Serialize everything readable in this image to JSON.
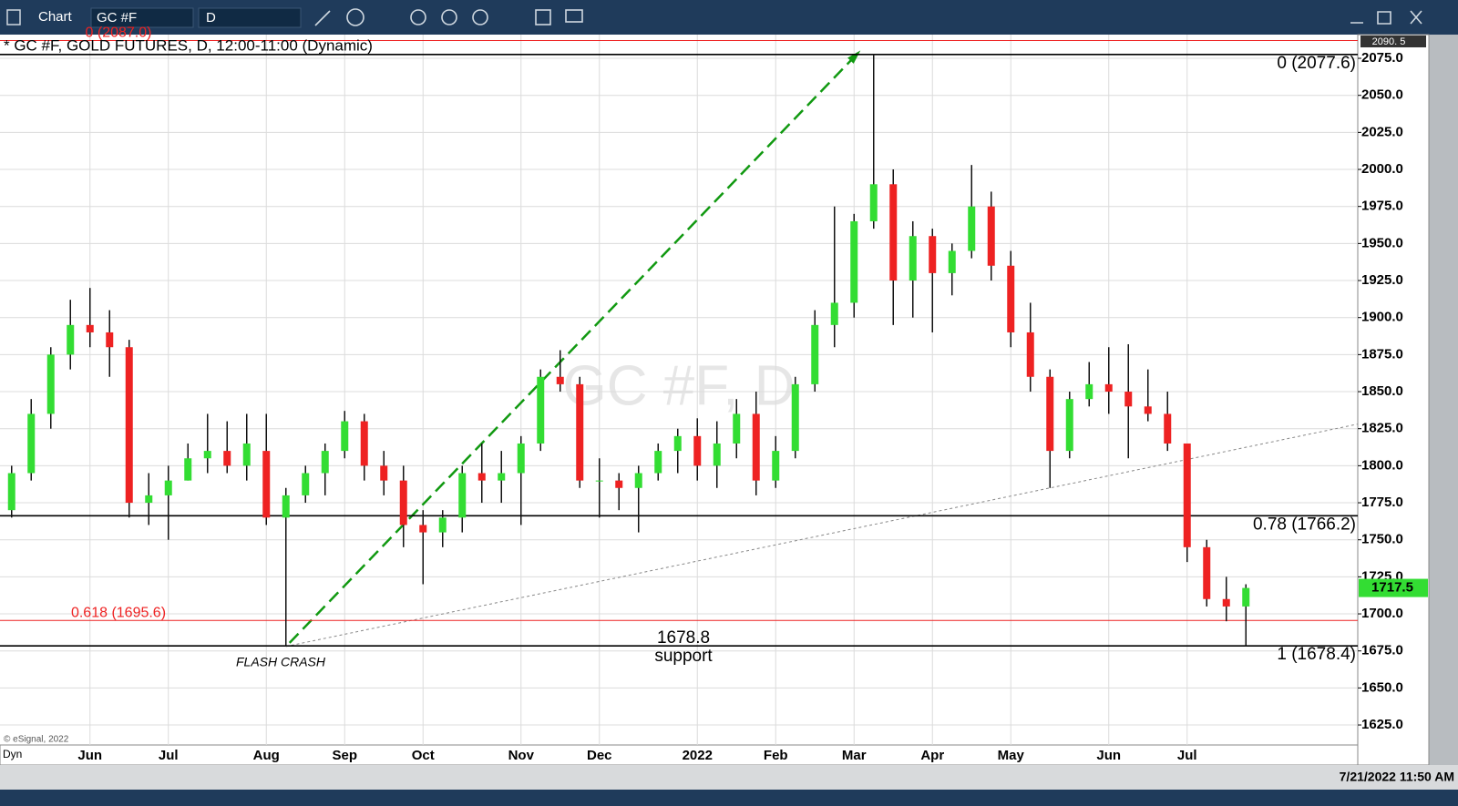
{
  "ui": {
    "toolbar": {
      "title": "Chart",
      "symbol": "GC #F",
      "interval": "D"
    },
    "status": {
      "mode": "Dyn",
      "datetime": "7/21/2022 11:50 AM"
    },
    "copyright": "© eSignal, 2022",
    "scale_marker": "2090. 5"
  },
  "chart_data": {
    "type": "candlestick",
    "title": "* GC #F, GOLD FUTURES, D, 12:00-11:00 (Dynamic)",
    "watermark": "GC #F, D",
    "categories": [
      null,
      null,
      null,
      null,
      "Jun",
      null,
      null,
      null,
      "Jul",
      null,
      null,
      null,
      null,
      "Aug",
      null,
      null,
      null,
      "Sep",
      null,
      null,
      null,
      "Oct",
      null,
      null,
      null,
      null,
      "Nov",
      null,
      null,
      null,
      "Dec",
      null,
      null,
      null,
      null,
      "2022",
      null,
      null,
      null,
      "Feb",
      null,
      null,
      null,
      "Mar",
      null,
      null,
      null,
      "Apr",
      null,
      null,
      null,
      "May",
      null,
      null,
      null,
      null,
      "Jun",
      null,
      null,
      null,
      "Jul",
      null,
      null,
      null
    ],
    "open": [
      1770,
      1795,
      1835,
      1875,
      1895,
      1890,
      1880,
      1775,
      1780,
      1790,
      1805,
      1810,
      1800,
      1810,
      1765,
      1780,
      1795,
      1810,
      1830,
      1800,
      1790,
      1760,
      1755,
      1765,
      1795,
      1790,
      1795,
      1815,
      1860,
      1855,
      1790,
      1790,
      1785,
      1795,
      1810,
      1820,
      1800,
      1815,
      1835,
      1790,
      1810,
      1855,
      1895,
      1910,
      1965,
      1990,
      1925,
      1955,
      1930,
      1945,
      1975,
      1935,
      1890,
      1860,
      1810,
      1845,
      1855,
      1850,
      1840,
      1835,
      1815,
      1745,
      1710,
      1705
    ],
    "high": [
      1800,
      1845,
      1880,
      1912,
      1920,
      1905,
      1885,
      1795,
      1800,
      1815,
      1835,
      1830,
      1835,
      1835,
      1785,
      1800,
      1815,
      1837,
      1835,
      1810,
      1800,
      1770,
      1770,
      1800,
      1815,
      1810,
      1820,
      1865,
      1878,
      1860,
      1805,
      1795,
      1800,
      1815,
      1825,
      1832,
      1830,
      1845,
      1850,
      1820,
      1860,
      1905,
      1975,
      1970,
      2078,
      2000,
      1965,
      1960,
      1950,
      2003,
      1985,
      1945,
      1910,
      1865,
      1850,
      1870,
      1880,
      1882,
      1865,
      1850,
      1815,
      1750,
      1725,
      1720
    ],
    "low": [
      1765,
      1790,
      1825,
      1865,
      1880,
      1860,
      1765,
      1760,
      1750,
      1790,
      1795,
      1795,
      1790,
      1760,
      1678,
      1775,
      1780,
      1805,
      1790,
      1780,
      1745,
      1720,
      1745,
      1755,
      1775,
      1775,
      1760,
      1810,
      1850,
      1785,
      1765,
      1770,
      1755,
      1790,
      1795,
      1790,
      1785,
      1805,
      1780,
      1785,
      1805,
      1850,
      1880,
      1900,
      1960,
      1895,
      1900,
      1890,
      1915,
      1940,
      1925,
      1880,
      1850,
      1785,
      1805,
      1840,
      1835,
      1805,
      1830,
      1810,
      1735,
      1705,
      1695,
      1678
    ],
    "close": [
      1795,
      1835,
      1875,
      1895,
      1890,
      1880,
      1775,
      1780,
      1790,
      1805,
      1810,
      1800,
      1815,
      1765,
      1780,
      1795,
      1810,
      1830,
      1800,
      1790,
      1760,
      1755,
      1765,
      1795,
      1790,
      1795,
      1815,
      1860,
      1855,
      1790,
      1790,
      1785,
      1795,
      1810,
      1820,
      1800,
      1815,
      1835,
      1790,
      1810,
      1855,
      1895,
      1910,
      1965,
      1990,
      1925,
      1955,
      1930,
      1945,
      1975,
      1935,
      1890,
      1860,
      1810,
      1845,
      1855,
      1850,
      1840,
      1835,
      1815,
      1745,
      1710,
      1705,
      1717.5
    ],
    "up_color": "#33dd33",
    "down_color": "#ee2222",
    "arrow_color": "#119911",
    "ylim": [
      1611.5,
      2091
    ],
    "yticks": [
      {
        "value": 1625,
        "label": "1625.0"
      },
      {
        "value": 1650,
        "label": "1650.0"
      },
      {
        "value": 1675,
        "label": "1675.0"
      },
      {
        "value": 1700,
        "label": "1700.0"
      },
      {
        "value": 1725,
        "label": "1725.0"
      },
      {
        "value": 1750,
        "label": "1750.0"
      },
      {
        "value": 1775,
        "label": "1775.0"
      },
      {
        "value": 1800,
        "label": "1800.0"
      },
      {
        "value": 1825,
        "label": "1825.0"
      },
      {
        "value": 1850,
        "label": "1850.0"
      },
      {
        "value": 1875,
        "label": "1875.0"
      },
      {
        "value": 1900,
        "label": "1900.0"
      },
      {
        "value": 1925,
        "label": "1925.0"
      },
      {
        "value": 1950,
        "label": "1950.0"
      },
      {
        "value": 1975,
        "label": "1975.0"
      },
      {
        "value": 2000,
        "label": "2000.0"
      },
      {
        "value": 2025,
        "label": "2025.0"
      },
      {
        "value": 2050,
        "label": "2050.0"
      },
      {
        "value": 2075,
        "label": "2075.0"
      }
    ],
    "grid": true,
    "levels": [
      {
        "value": 2087,
        "label": "0 (2087.0)",
        "color": "#ee2222",
        "anchor": "left"
      },
      {
        "value": 2077.6,
        "label": "0 (2077.6)",
        "color": "#000000",
        "anchor": "right"
      },
      {
        "value": 1766.2,
        "label": "0.78 (1766.2)",
        "color": "#000000",
        "anchor": "right"
      },
      {
        "value": 1695.6,
        "label": "0.618 (1695.6)",
        "color": "#ee2222",
        "anchor": "left"
      },
      {
        "value": 1678.4,
        "label": "1 (1678.4)",
        "color": "#000000",
        "anchor": "right"
      }
    ],
    "annotations": [
      "FLASH CRASH",
      "1678.8",
      "support"
    ]
  }
}
